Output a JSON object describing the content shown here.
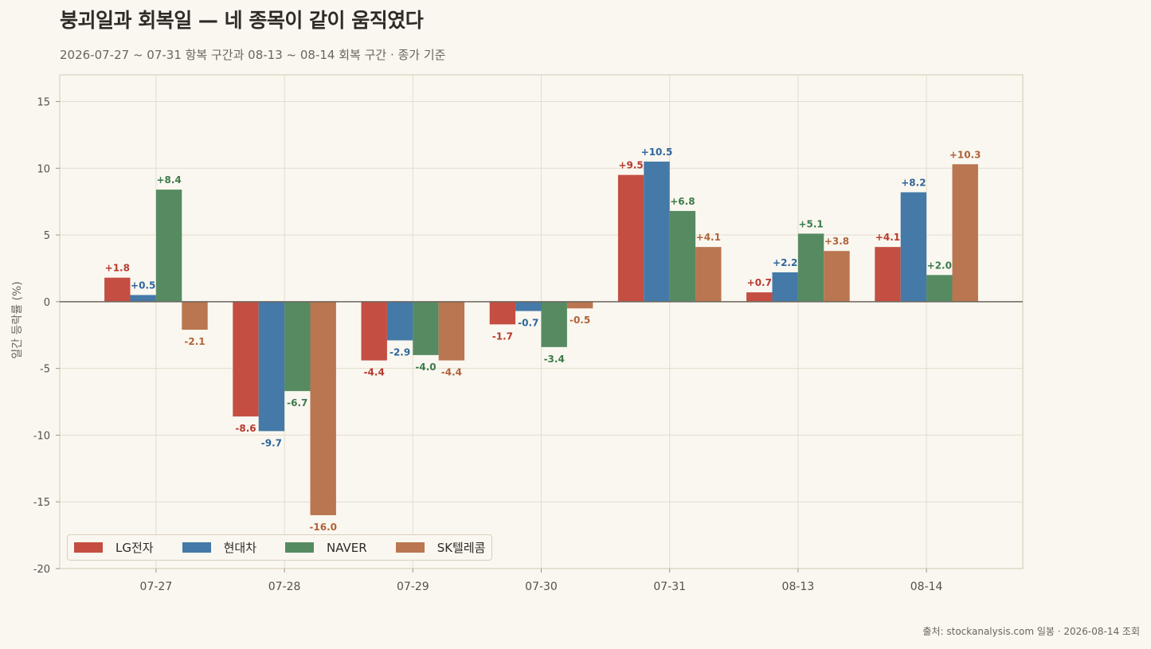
{
  "header": {
    "title": "붕괴일과 회복일 — 네 종목이 같이 움직였다",
    "subtitle": "2026-07-27 ~ 07-31 항복 구간과 08-13 ~ 08-14 회복 구간 · 종가 기준"
  },
  "footer": {
    "source": "출처: stockanalysis.com 일봉 · 2026-08-14 조회"
  },
  "chart_data": {
    "type": "bar",
    "title": "붕괴일과 회복일 — 네 종목이 같이 움직였다",
    "ylabel": "일간 등락률 (%)",
    "xlabel": "",
    "ylim": [
      -20,
      17
    ],
    "yticks": [
      -20,
      -15,
      -10,
      -5,
      0,
      5,
      10,
      15
    ],
    "grid": true,
    "legend_position": "bottom-left",
    "categories": [
      "07-27",
      "07-28",
      "07-29",
      "07-30",
      "07-31",
      "08-13",
      "08-14"
    ],
    "series": [
      {
        "name": "LG전자",
        "color": "#c44e42",
        "label_color": "#b83a2e",
        "values": [
          1.8,
          -8.6,
          -4.4,
          -1.7,
          9.5,
          0.7,
          4.1
        ],
        "labels": [
          "+1.8",
          "-8.6",
          "-4.4",
          "-1.7",
          "+9.5",
          "+0.7",
          "+4.1"
        ]
      },
      {
        "name": "현대차",
        "color": "#4479a8",
        "label_color": "#2f669a",
        "values": [
          0.5,
          -9.7,
          -2.9,
          -0.7,
          10.5,
          2.2,
          8.2
        ],
        "labels": [
          "+0.5",
          "-9.7",
          "-2.9",
          "-0.7",
          "+10.5",
          "+2.2",
          "+8.2"
        ]
      },
      {
        "name": "NAVER",
        "color": "#568b62",
        "label_color": "#3d7a4b",
        "values": [
          8.4,
          -6.7,
          -4.0,
          -3.4,
          6.8,
          5.1,
          2.0
        ],
        "labels": [
          "+8.4",
          "-6.7",
          "-4.0",
          "-3.4",
          "+6.8",
          "+5.1",
          "+2.0"
        ]
      },
      {
        "name": "SK텔레콤",
        "color": "#ba7650",
        "label_color": "#b0643a",
        "values": [
          -2.1,
          -16.0,
          -4.4,
          -0.5,
          4.1,
          3.8,
          10.3
        ],
        "labels": [
          "-2.1",
          "-16.0",
          "-4.4",
          "-0.5",
          "+4.1",
          "+3.8",
          "+10.3"
        ]
      }
    ]
  }
}
